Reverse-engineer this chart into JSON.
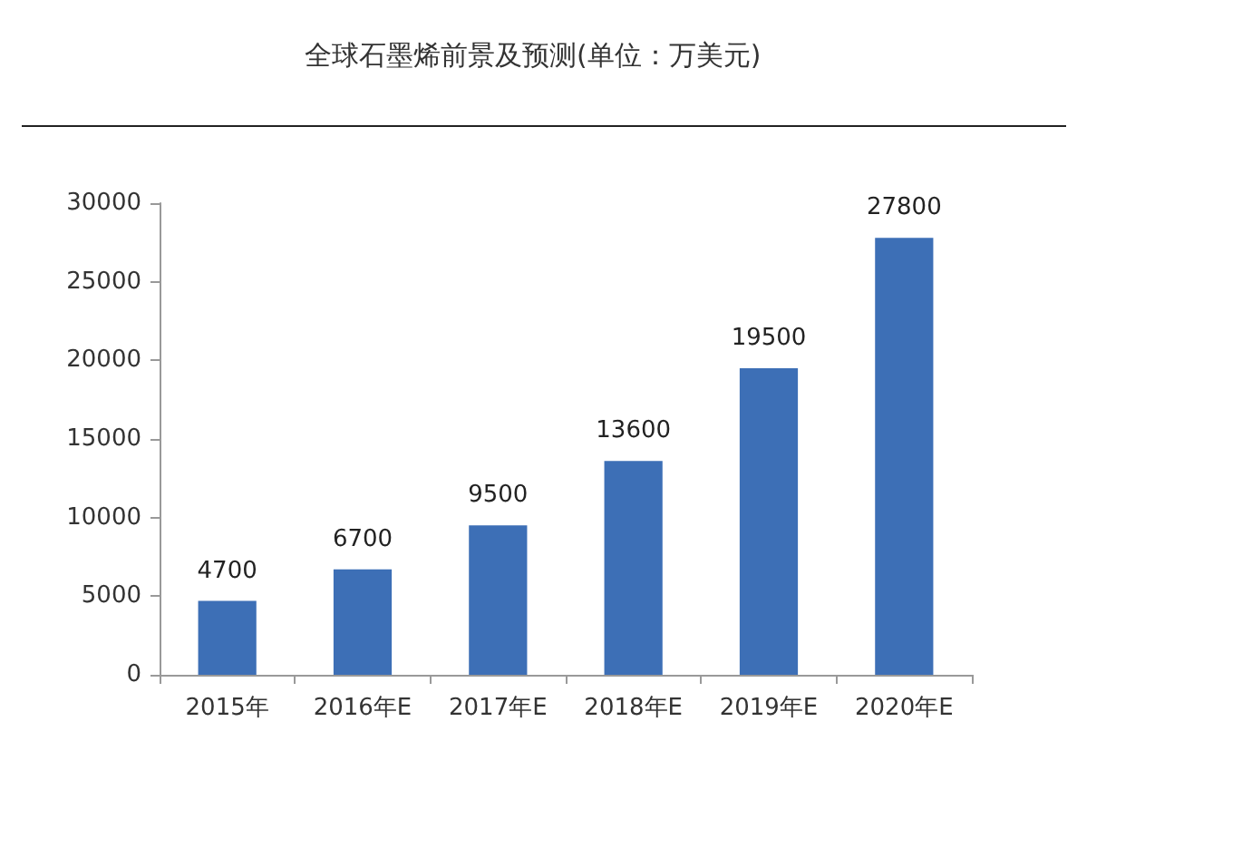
{
  "chart_data": {
    "type": "bar",
    "title": "全球石墨烯前景及预测(单位：万美元)",
    "categories": [
      "2015年",
      "2016年E",
      "2017年E",
      "2018年E",
      "2019年E",
      "2020年E"
    ],
    "values": [
      4700,
      6700,
      9500,
      13600,
      19500,
      27800
    ],
    "color": "#3d6fb6",
    "ylim": [
      0,
      30000
    ],
    "yticks": [
      0,
      5000,
      10000,
      15000,
      20000,
      25000,
      30000
    ],
    "grid": false,
    "data_labels": true
  }
}
